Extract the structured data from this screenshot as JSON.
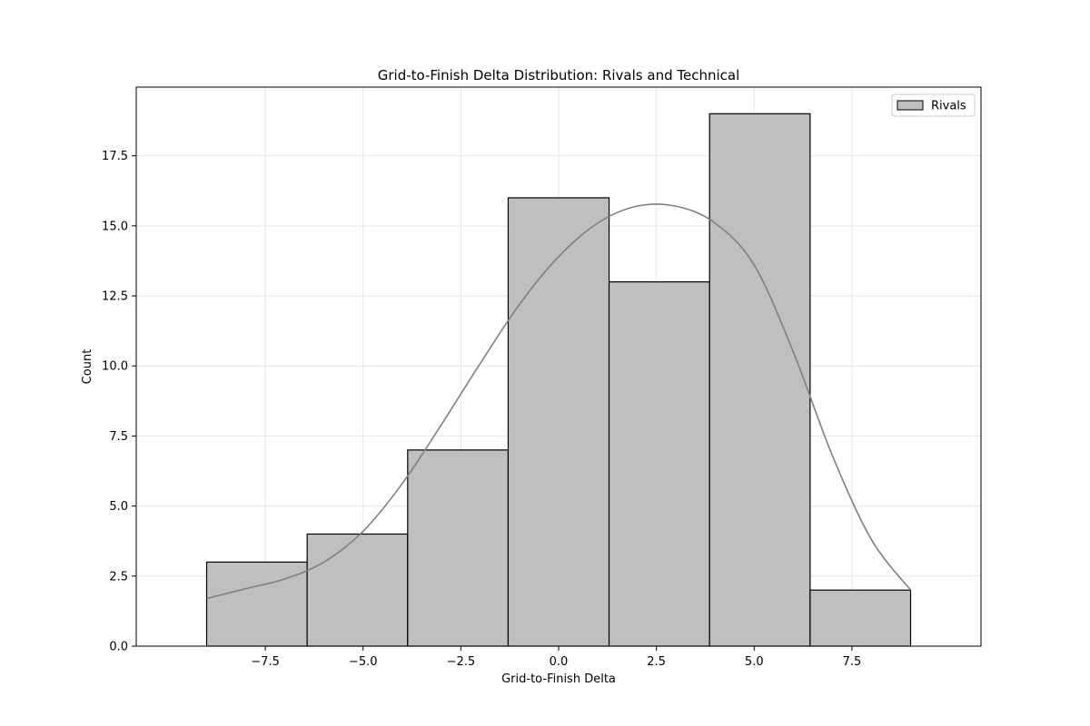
{
  "chart_data": {
    "type": "bar",
    "title": "Grid-to-Finish Delta Distribution: Rivals and Technical",
    "xlabel": "Grid-to-Finish Delta",
    "ylabel": "Count",
    "xlim": [
      -10.8,
      10.8
    ],
    "ylim": [
      0,
      19.95
    ],
    "x_ticks": [
      -7.5,
      -5.0,
      -2.5,
      0.0,
      2.5,
      5.0,
      7.5
    ],
    "x_tick_labels": [
      "−7.5",
      "−5.0",
      "−2.5",
      "0.0",
      "2.5",
      "5.0",
      "7.5"
    ],
    "y_ticks": [
      0.0,
      2.5,
      5.0,
      7.5,
      10.0,
      12.5,
      15.0,
      17.5
    ],
    "y_tick_labels": [
      "0.0",
      "2.5",
      "5.0",
      "7.5",
      "10.0",
      "12.5",
      "15.0",
      "17.5"
    ],
    "grid": true,
    "legend": {
      "position": "top-right",
      "entries": [
        "Rivals"
      ]
    },
    "series": [
      {
        "name": "Rivals",
        "bins": [
          {
            "x0": -9.0,
            "x1": -6.43,
            "count": 3
          },
          {
            "x0": -6.43,
            "x1": -3.86,
            "count": 4
          },
          {
            "x0": -3.86,
            "x1": -1.29,
            "count": 7
          },
          {
            "x0": -1.29,
            "x1": 1.29,
            "count": 16
          },
          {
            "x0": 1.29,
            "x1": 3.86,
            "count": 13
          },
          {
            "x0": 3.86,
            "x1": 6.43,
            "count": 19
          },
          {
            "x0": 6.43,
            "x1": 9.0,
            "count": 2
          }
        ],
        "kde": {
          "x": [
            -9.0,
            -8.0,
            -7.0,
            -6.0,
            -5.0,
            -4.0,
            -3.0,
            -2.0,
            -1.0,
            0.0,
            1.0,
            2.0,
            3.0,
            4.0,
            5.0,
            6.0,
            7.0,
            8.0,
            9.0
          ],
          "y": [
            1.7,
            2.05,
            2.4,
            3.0,
            4.1,
            5.8,
            7.9,
            10.1,
            12.2,
            13.9,
            15.1,
            15.7,
            15.7,
            15.1,
            13.6,
            10.5,
            6.8,
            3.8,
            2.0
          ]
        }
      }
    ],
    "colors": {
      "bar_fill": "#bfbfbf",
      "bar_edge": "#000000",
      "kde_line": "#808080",
      "grid": "#e6e6e6",
      "axis": "#000000"
    }
  }
}
